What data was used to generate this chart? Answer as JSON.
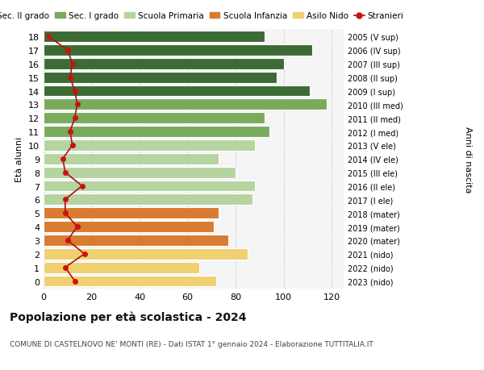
{
  "ages": [
    18,
    17,
    16,
    15,
    14,
    13,
    12,
    11,
    10,
    9,
    8,
    7,
    6,
    5,
    4,
    3,
    2,
    1,
    0
  ],
  "anni_nascita": [
    "2005 (V sup)",
    "2006 (IV sup)",
    "2007 (III sup)",
    "2008 (II sup)",
    "2009 (I sup)",
    "2010 (III med)",
    "2011 (II med)",
    "2012 (I med)",
    "2013 (V ele)",
    "2014 (IV ele)",
    "2015 (III ele)",
    "2016 (II ele)",
    "2017 (I ele)",
    "2018 (mater)",
    "2019 (mater)",
    "2020 (mater)",
    "2021 (nido)",
    "2022 (nido)",
    "2023 (nido)"
  ],
  "bar_values": [
    92,
    112,
    100,
    97,
    111,
    118,
    92,
    94,
    88,
    73,
    80,
    88,
    87,
    73,
    71,
    77,
    85,
    65,
    72
  ],
  "bar_colors": [
    "#3d6b35",
    "#3d6b35",
    "#3d6b35",
    "#3d6b35",
    "#3d6b35",
    "#7aab5c",
    "#7aab5c",
    "#7aab5c",
    "#b5d4a0",
    "#b5d4a0",
    "#b5d4a0",
    "#b5d4a0",
    "#b5d4a0",
    "#d97b30",
    "#d97b30",
    "#d97b30",
    "#f0d070",
    "#f0d070",
    "#f0d070"
  ],
  "stranieri_values": [
    2,
    10,
    12,
    11,
    13,
    14,
    13,
    11,
    12,
    8,
    9,
    16,
    9,
    9,
    14,
    10,
    17,
    9,
    13
  ],
  "legend_labels": [
    "Sec. II grado",
    "Sec. I grado",
    "Scuola Primaria",
    "Scuola Infanzia",
    "Asilo Nido",
    "Stranieri"
  ],
  "legend_colors": [
    "#3d6b35",
    "#7aab5c",
    "#b5d4a0",
    "#d97b30",
    "#f0d070",
    "#cc0000"
  ],
  "ylabel_left": "Età alunni",
  "ylabel_right": "Anni di nascita",
  "title": "Popolazione per età scolastica - 2024",
  "subtitle": "COMUNE DI CASTELNOVO NE' MONTI (RE) - Dati ISTAT 1° gennaio 2024 - Elaborazione TUTTITALIA.IT",
  "xlim_max": 125,
  "xticks": [
    0,
    20,
    40,
    60,
    80,
    100,
    120
  ],
  "background_color": "#ffffff",
  "plot_bg_color": "#f5f5f5",
  "grid_color": "#cccccc",
  "bar_height": 0.82,
  "stranieri_line_color": "#aa1111",
  "stranieri_marker_color": "#cc1111"
}
